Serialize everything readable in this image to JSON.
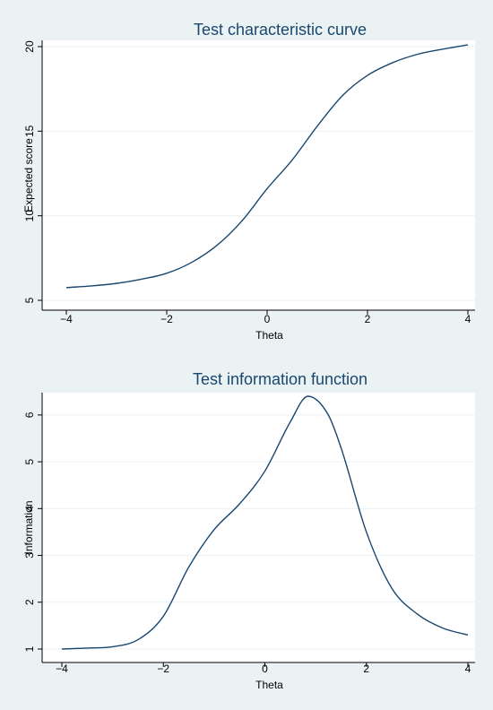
{
  "colors": {
    "background": "#eaf2f3",
    "plot_background": "#ffffff",
    "grid": "#eaf2f3",
    "line": "#1a476f",
    "title": "#1a476f",
    "axis": "#000000"
  },
  "chart_data": [
    {
      "type": "line",
      "title": "Test characteristic curve",
      "xlabel": "Theta",
      "ylabel": "Expected score",
      "xlim": [
        -4,
        4
      ],
      "ylim": [
        5,
        20
      ],
      "xticks": [
        -4,
        -2,
        0,
        2,
        4
      ],
      "xtick_labels": [
        "−4",
        "−2",
        "0",
        "2",
        "4"
      ],
      "yticks": [
        5,
        10,
        15,
        20
      ],
      "ytick_labels": [
        "5",
        "10",
        "15",
        "20"
      ],
      "grid": true,
      "series": [
        {
          "x": [
            -4,
            -3.5,
            -3,
            -2.5,
            -2,
            -1.5,
            -1,
            -0.5,
            0,
            0.5,
            1,
            1.5,
            2,
            2.5,
            3,
            3.5,
            4
          ],
          "y": [
            5.75,
            5.85,
            6.0,
            6.25,
            6.6,
            7.25,
            8.25,
            9.7,
            11.6,
            13.3,
            15.3,
            17.1,
            18.3,
            19.05,
            19.55,
            19.85,
            20.1
          ]
        }
      ]
    },
    {
      "type": "line",
      "title": "Test information function",
      "xlabel": "Theta",
      "ylabel": "Information",
      "xlim": [
        -4,
        4
      ],
      "ylim": [
        1,
        6.4
      ],
      "xticks": [
        -4,
        -2,
        0,
        2,
        4
      ],
      "xtick_labels": [
        "−4",
        "−2",
        "0",
        "2",
        "4"
      ],
      "yticks": [
        1,
        2,
        3,
        4,
        5,
        6
      ],
      "ytick_labels": [
        "1",
        "2",
        "3",
        "4",
        "5",
        "6"
      ],
      "grid": true,
      "series": [
        {
          "x": [
            -4,
            -3.5,
            -3,
            -2.5,
            -2,
            -1.5,
            -1,
            -0.5,
            0,
            0.5,
            0.85,
            1.25,
            1.5,
            2,
            2.5,
            3,
            3.5,
            4
          ],
          "y": [
            1.0,
            1.02,
            1.05,
            1.2,
            1.7,
            2.75,
            3.55,
            4.1,
            4.8,
            5.85,
            6.4,
            6.0,
            5.3,
            3.5,
            2.3,
            1.75,
            1.45,
            1.3
          ]
        }
      ]
    }
  ]
}
